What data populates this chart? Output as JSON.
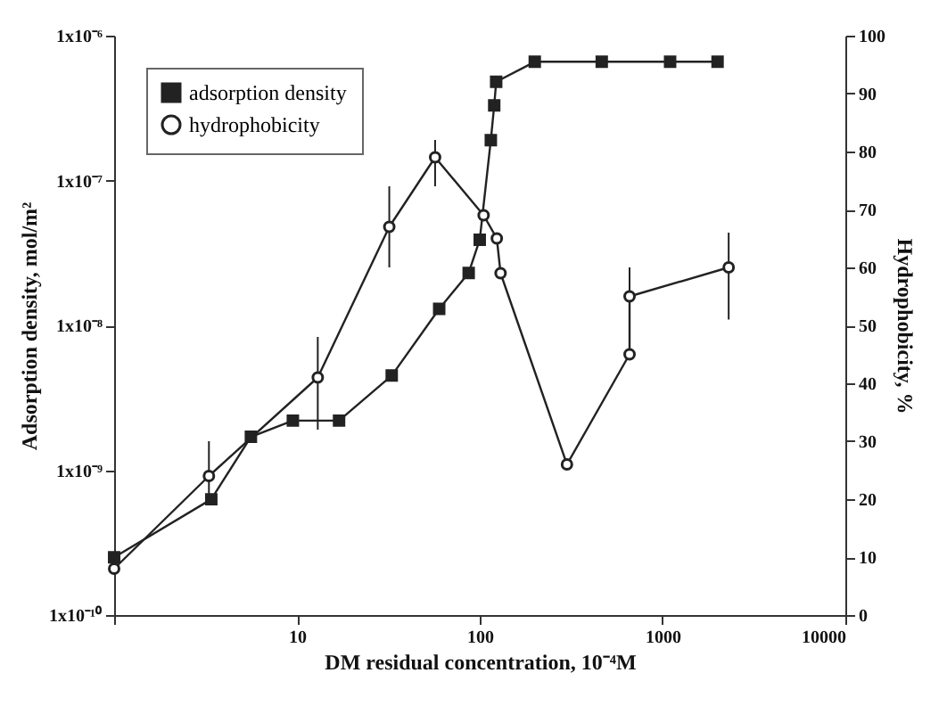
{
  "chart_data": {
    "type": "line",
    "xlabel": "DM residual concentration, 10⁻⁴M",
    "ylabel": "Adsorption density, mol/m²",
    "y2label": "Hydrophobicity, %",
    "log": "xy",
    "xlim": [
      1,
      10000
    ],
    "xticks": [
      {
        "value": 1,
        "label": null
      },
      10,
      100,
      1000,
      10000
    ],
    "ylim": [
      1e-10,
      1e-06
    ],
    "yticks": [
      {
        "value": 1e-10,
        "label": "1x10⁻¹⁰"
      },
      {
        "value": 1e-09,
        "label": "1x10⁻⁹"
      },
      {
        "value": 1e-08,
        "label": "1x10⁻⁸"
      },
      {
        "value": 1e-07,
        "label": "1x10⁻⁷"
      },
      {
        "value": 1e-06,
        "label": "1x10⁻⁶"
      }
    ],
    "y2lim": [
      0,
      100
    ],
    "y2ticks": [
      0,
      10,
      20,
      30,
      40,
      50,
      60,
      70,
      80,
      90,
      100
    ],
    "grid": false,
    "legend": "top left",
    "series": [
      {
        "name": "adsorption density",
        "color": "#222222",
        "marker": "square",
        "x": [
          1,
          3.4,
          5.6,
          9.5,
          17,
          33,
          60,
          87,
          100,
          115,
          120,
          123,
          200,
          465,
          1100,
          2000
        ],
        "values": [
          2.5e-10,
          6.3e-10,
          1.7e-09,
          2.2e-09,
          2.2e-09,
          4.5e-09,
          1.3e-08,
          2.3e-08,
          3.9e-08,
          1.9e-07,
          3.3e-07,
          4.8e-07,
          6.6e-07,
          6.6e-07,
          6.6e-07,
          6.6e-07
        ]
      },
      {
        "name": "hydrophobicity",
        "color": "#222222",
        "marker": "circle",
        "axis": "y2",
        "x": [
          1,
          3.3,
          13,
          32,
          57,
          105,
          124,
          130,
          300,
          660,
          660,
          2300
        ],
        "values": [
          8,
          24,
          41,
          67,
          79,
          69,
          65,
          59,
          26,
          45,
          55,
          60
        ],
        "errors": [
          null,
          [
            20,
            30
          ],
          [
            32,
            48
          ],
          [
            60,
            74
          ],
          [
            74,
            82
          ],
          null,
          null,
          null,
          null,
          null,
          [
            51,
            60
          ],
          [
            51,
            66
          ]
        ]
      }
    ]
  }
}
